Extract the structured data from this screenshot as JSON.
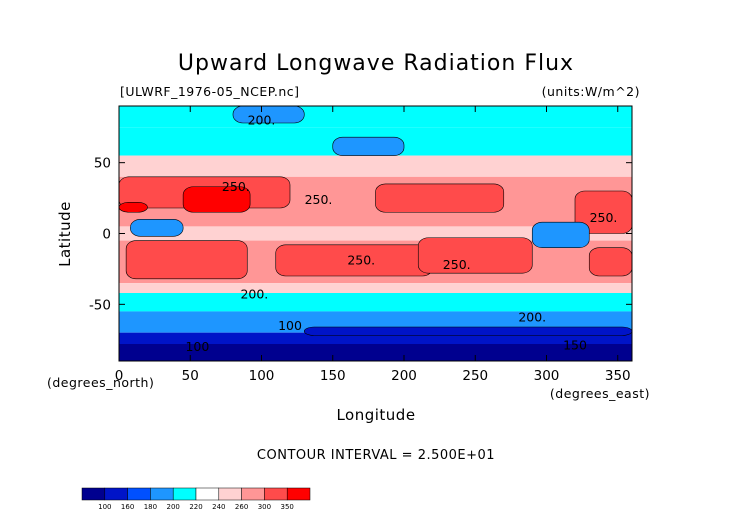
{
  "chart_data": {
    "type": "heatmap",
    "title": "Upward Longwave Radiation Flux",
    "dataset_label": "[ULWRF_1976-05_NCEP.nc]",
    "units_label": "(units:W/m^2)",
    "xlabel": "Longitude",
    "ylabel": "Latitude",
    "x_unit_label": "(degrees_east)",
    "y_unit_label": "(degrees_north)",
    "xlim": [
      0,
      360
    ],
    "ylim": [
      -90,
      90
    ],
    "x_ticks": [
      0,
      50,
      100,
      150,
      200,
      250,
      300,
      350
    ],
    "y_ticks": [
      50,
      0,
      -50
    ],
    "contour_interval_text": "CONTOUR INTERVAL = 2.500E+01",
    "contour_labels": [
      {
        "text": "200.",
        "lon": 100,
        "lat": 77
      },
      {
        "text": "250.",
        "lon": 82,
        "lat": 30
      },
      {
        "text": "250.",
        "lon": 140,
        "lat": 21
      },
      {
        "text": "250.",
        "lon": 340,
        "lat": 8
      },
      {
        "text": "250.",
        "lon": 170,
        "lat": -22
      },
      {
        "text": "250.",
        "lon": 237,
        "lat": -25
      },
      {
        "text": "200.",
        "lon": 95,
        "lat": -46
      },
      {
        "text": "200.",
        "lon": 290,
        "lat": -62
      },
      {
        "text": "100",
        "lon": 120,
        "lat": -68
      },
      {
        "text": "100",
        "lon": 55,
        "lat": -83
      },
      {
        "text": "150",
        "lon": 320,
        "lat": -82
      }
    ],
    "colorbar": {
      "levels": [
        100,
        160,
        180,
        200,
        220,
        240,
        260,
        300,
        350
      ],
      "colors": [
        "#00008f",
        "#0014c8",
        "#0050ff",
        "#1e96ff",
        "#00ffff",
        "#ffffff",
        "#ffd2d2",
        "#ff9696",
        "#ff4b4b",
        "#ff0000"
      ]
    },
    "field_bands": [
      {
        "lat": [
          75,
          90
        ],
        "color": "#00ffff"
      },
      {
        "lat": [
          55,
          75
        ],
        "color": "#00ffff"
      },
      {
        "lat": [
          40,
          55
        ],
        "color": "#ffd2d2"
      },
      {
        "lat": [
          5,
          40
        ],
        "color": "#ff9696"
      },
      {
        "lat": [
          -5,
          5
        ],
        "color": "#ffd2d2"
      },
      {
        "lat": [
          -35,
          -5
        ],
        "color": "#ff9696"
      },
      {
        "lat": [
          -42,
          -35
        ],
        "color": "#ffd2d2"
      },
      {
        "lat": [
          -55,
          -42
        ],
        "color": "#00ffff"
      },
      {
        "lat": [
          -70,
          -55
        ],
        "color": "#1e96ff"
      },
      {
        "lat": [
          -78,
          -70
        ],
        "color": "#0014c8"
      },
      {
        "lat": [
          -90,
          -78
        ],
        "color": "#00008f"
      }
    ],
    "field_patches": [
      {
        "lon": [
          80,
          130
        ],
        "lat": [
          78,
          90
        ],
        "color": "#1e96ff"
      },
      {
        "lon": [
          150,
          200
        ],
        "lat": [
          55,
          68
        ],
        "color": "#1e96ff"
      },
      {
        "lon": [
          0,
          120
        ],
        "lat": [
          18,
          40
        ],
        "color": "#ff4b4b"
      },
      {
        "lon": [
          45,
          92
        ],
        "lat": [
          15,
          33
        ],
        "color": "#ff0000"
      },
      {
        "lon": [
          0,
          20
        ],
        "lat": [
          15,
          22
        ],
        "color": "#ff0000"
      },
      {
        "lon": [
          180,
          270
        ],
        "lat": [
          15,
          35
        ],
        "color": "#ff4b4b"
      },
      {
        "lon": [
          320,
          360
        ],
        "lat": [
          0,
          30
        ],
        "color": "#ff4b4b"
      },
      {
        "lon": [
          8,
          45
        ],
        "lat": [
          -2,
          10
        ],
        "color": "#1e96ff"
      },
      {
        "lon": [
          290,
          330
        ],
        "lat": [
          -10,
          8
        ],
        "color": "#1e96ff"
      },
      {
        "lon": [
          5,
          90
        ],
        "lat": [
          -32,
          -5
        ],
        "color": "#ff4b4b"
      },
      {
        "lon": [
          110,
          220
        ],
        "lat": [
          -30,
          -8
        ],
        "color": "#ff4b4b"
      },
      {
        "lon": [
          210,
          290
        ],
        "lat": [
          -28,
          -3
        ],
        "color": "#ff4b4b"
      },
      {
        "lon": [
          330,
          360
        ],
        "lat": [
          -30,
          -10
        ],
        "color": "#ff4b4b"
      },
      {
        "lon": [
          130,
          360
        ],
        "lat": [
          -72,
          -66
        ],
        "color": "#0014c8"
      }
    ]
  }
}
